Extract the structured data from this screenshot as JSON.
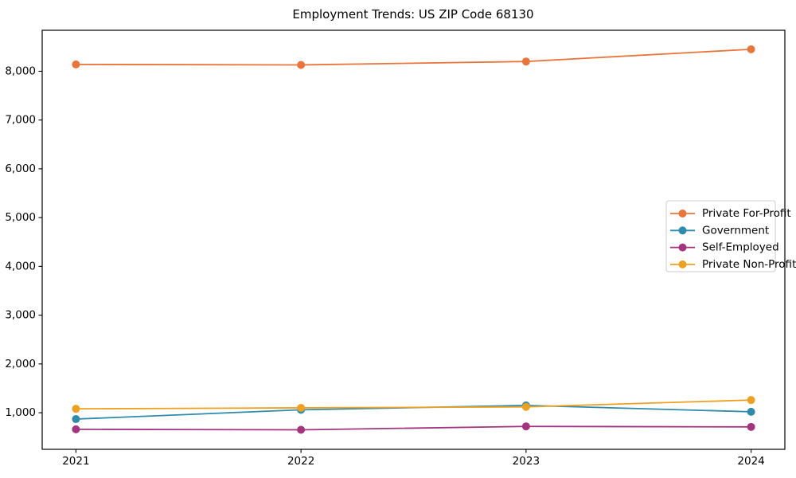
{
  "figure": {
    "background_color": "#ffffff",
    "frame_color": "#000000"
  },
  "chart_data": {
    "type": "line",
    "title": "Employment Trends: US ZIP Code 68130",
    "xlabel": "",
    "ylabel": "",
    "categories": [
      "2021",
      "2022",
      "2023",
      "2024"
    ],
    "series": [
      {
        "name": "Private For-Profit",
        "color": "#e8763c",
        "values": [
          8140,
          8130,
          8200,
          8450
        ]
      },
      {
        "name": "Government",
        "color": "#2e8bab",
        "values": [
          870,
          1060,
          1150,
          1020
        ]
      },
      {
        "name": "Self-Employed",
        "color": "#a3357e",
        "values": [
          660,
          650,
          720,
          710
        ]
      },
      {
        "name": "Private Non-Profit",
        "color": "#eda122",
        "values": [
          1080,
          1100,
          1120,
          1260
        ]
      }
    ],
    "ylim": [
      250,
      8840
    ],
    "y_ticks": [
      1000,
      2000,
      3000,
      4000,
      5000,
      6000,
      7000,
      8000
    ],
    "y_tick_labels": [
      "1,000",
      "2,000",
      "3,000",
      "4,000",
      "5,000",
      "6,000",
      "7,000",
      "8,000"
    ],
    "grid": false,
    "marker": "circle",
    "legend": {
      "position": "right-center",
      "border_color": "#cccccc",
      "background": "#ffffff"
    }
  }
}
